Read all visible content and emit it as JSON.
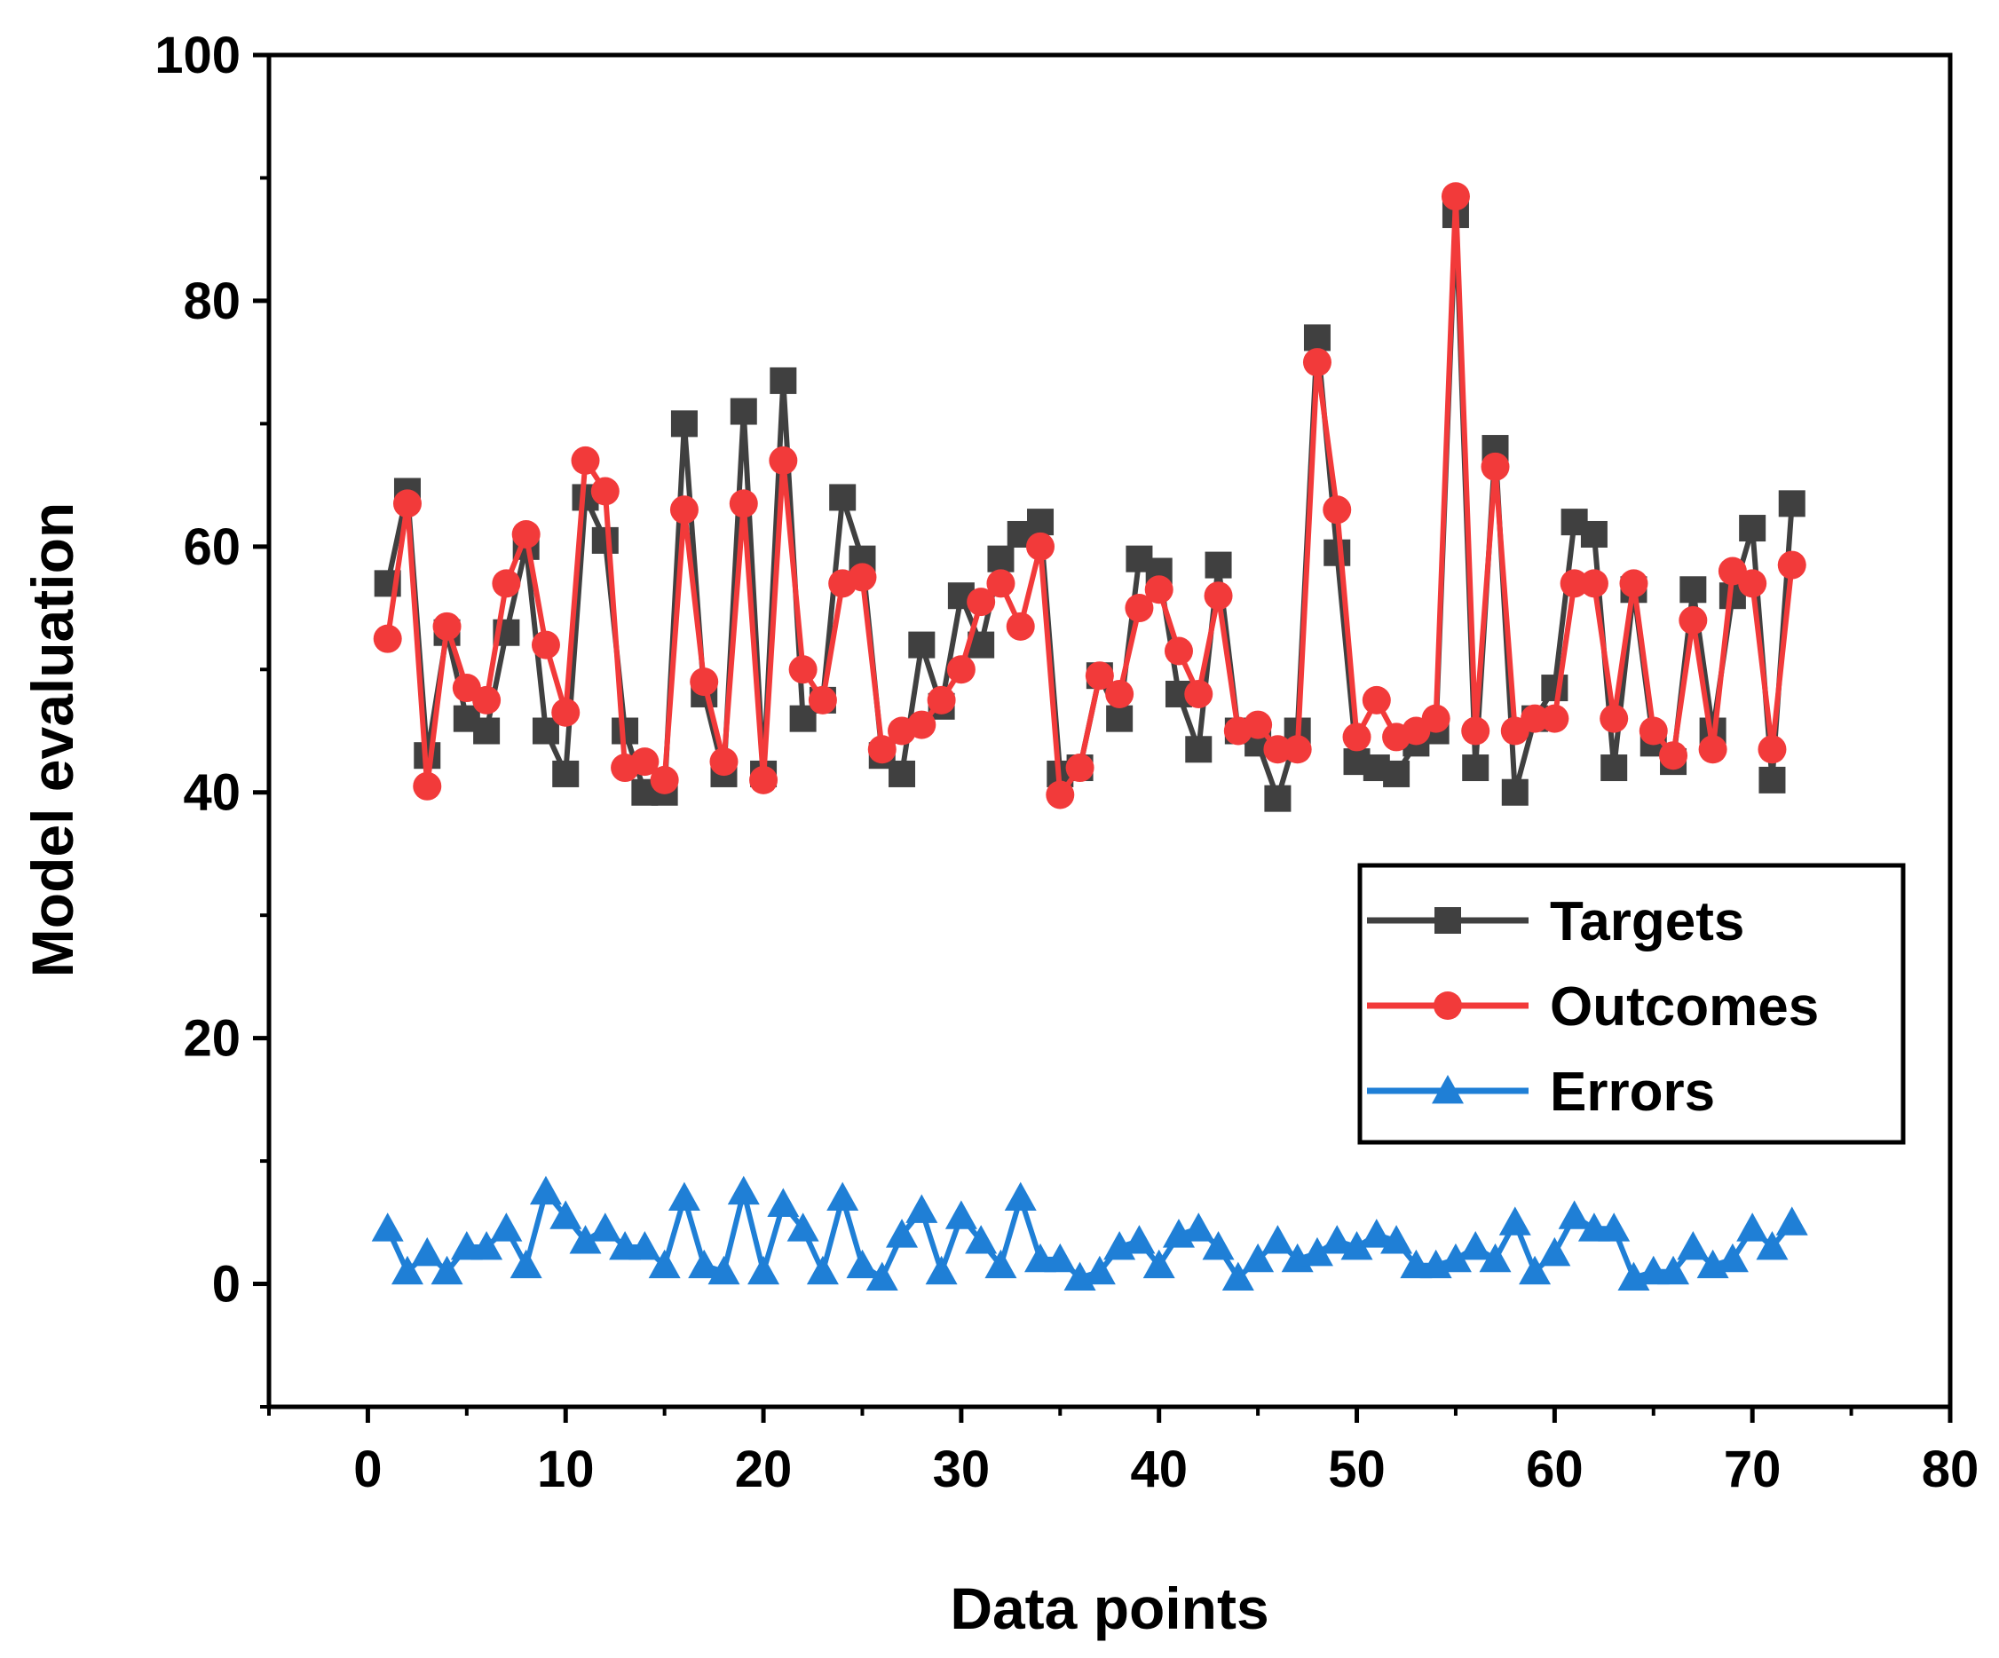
{
  "chart_data": {
    "type": "line",
    "xlabel": "Data points",
    "ylabel": "Model evaluation",
    "xlim": [
      -5,
      80
    ],
    "ylim": [
      -10,
      100
    ],
    "xticks": [
      0,
      10,
      20,
      30,
      40,
      50,
      60,
      70,
      80
    ],
    "yticks": [
      0,
      20,
      40,
      60,
      80,
      100
    ],
    "legend_position": "right",
    "x": [
      1,
      2,
      3,
      4,
      5,
      6,
      7,
      8,
      9,
      10,
      11,
      12,
      13,
      14,
      15,
      16,
      17,
      18,
      19,
      20,
      21,
      22,
      23,
      24,
      25,
      26,
      27,
      28,
      29,
      30,
      31,
      32,
      33,
      34,
      35,
      36,
      37,
      38,
      39,
      40,
      41,
      42,
      43,
      44,
      45,
      46,
      47,
      48,
      49,
      50,
      51,
      52,
      53,
      54,
      55,
      56,
      57,
      58,
      59,
      60,
      61,
      62,
      63,
      64,
      65,
      66,
      67,
      68,
      69,
      70,
      71,
      72
    ],
    "series": [
      {
        "name": "Targets",
        "color": "#404040",
        "marker": "square",
        "values": [
          57,
          64.5,
          43,
          53,
          46,
          45,
          53,
          60,
          45,
          41.5,
          64,
          60.5,
          45,
          40,
          40,
          70,
          48,
          41.5,
          71,
          41.5,
          73.5,
          46,
          47.5,
          64,
          59,
          43,
          41.5,
          52,
          47,
          56,
          52,
          59,
          61,
          62,
          41.5,
          42,
          49.5,
          46,
          59,
          58,
          48,
          43.5,
          58.5,
          45,
          44,
          39.5,
          45,
          77,
          59.5,
          42.5,
          42,
          41.5,
          44,
          45,
          87,
          42,
          68,
          40,
          46,
          48.5,
          62,
          61,
          42,
          56.5,
          44,
          42.5,
          56.5,
          45,
          56,
          61.5,
          41,
          63.5
        ]
      },
      {
        "name": "Outcomes",
        "color": "#f23a3a",
        "marker": "circle",
        "values": [
          52.5,
          63.5,
          40.5,
          53.5,
          48.5,
          47.5,
          57,
          61,
          52,
          46.5,
          67,
          64.5,
          42,
          42.5,
          41,
          63,
          49,
          42.5,
          63.5,
          41,
          67,
          50,
          47.5,
          57,
          57.5,
          43.5,
          45,
          45.5,
          47.5,
          50,
          55.5,
          57,
          53.5,
          60,
          39.8,
          42,
          49.5,
          48,
          55,
          56.5,
          51.5,
          48,
          56,
          45,
          45.5,
          43.5,
          43.5,
          75,
          63,
          44.5,
          47.5,
          44.5,
          45,
          46,
          88.5,
          45,
          66.5,
          45,
          46,
          46,
          57,
          57,
          46,
          57,
          45,
          43,
          54,
          43.5,
          58,
          57,
          43.5,
          58.5
        ]
      },
      {
        "name": "Errors",
        "color": "#1f7fd6",
        "marker": "triangle",
        "values": [
          4.5,
          1,
          2.5,
          1,
          3,
          3,
          4.5,
          1.5,
          7.5,
          5.5,
          3.5,
          4.5,
          3,
          3,
          1.5,
          7,
          1.5,
          1,
          7.5,
          1,
          6.5,
          4.5,
          1,
          7,
          1.5,
          0.5,
          4,
          6,
          1,
          5.5,
          3.5,
          1.5,
          7,
          2,
          2,
          0.5,
          1,
          3,
          3.5,
          1.5,
          4,
          4.5,
          3,
          0.5,
          2,
          3.5,
          2,
          2.5,
          3.5,
          3,
          4,
          3.5,
          1.5,
          1.5,
          2,
          3,
          2,
          5,
          1,
          2.5,
          5.5,
          4.5,
          4.5,
          0.5,
          1,
          1,
          3,
          1.5,
          2,
          4.5,
          3,
          5
        ]
      }
    ]
  }
}
